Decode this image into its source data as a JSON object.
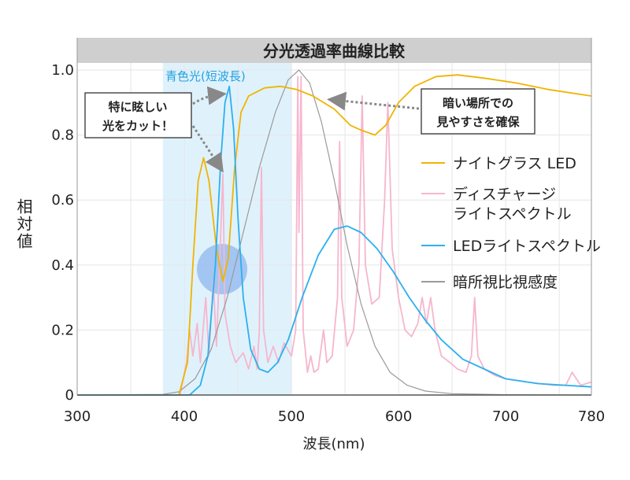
{
  "chart_data": {
    "type": "line",
    "title": "分光透過率曲線比較",
    "xlabel": "波長(nm)",
    "ylabel": "相対値",
    "xlim": [
      300,
      780
    ],
    "ylim": [
      0,
      1.0
    ],
    "x_ticks": [
      "300",
      "400",
      "500",
      "600",
      "700",
      "780"
    ],
    "y_ticks": [
      "0",
      "0.2",
      "0.4",
      "0.6",
      "0.8",
      "1.0"
    ],
    "grid": true,
    "legend_position": "right",
    "highlight_band": {
      "label": "青色光(短波長)",
      "range": [
        380,
        500
      ],
      "color": "#dff2fc"
    },
    "annotations": [
      {
        "lines": [
          "特に眩しい",
          "光をカット！"
        ]
      },
      {
        "lines": [
          "暗い場所での",
          "見やすさを確保"
        ]
      }
    ],
    "series": [
      {
        "name": "ナイトグラス LED",
        "color": "#f0b400",
        "points": [
          [
            300,
            0
          ],
          [
            395,
            0
          ],
          [
            403,
            0.1
          ],
          [
            408,
            0.4
          ],
          [
            413,
            0.66
          ],
          [
            418,
            0.73
          ],
          [
            423,
            0.66
          ],
          [
            430,
            0.45
          ],
          [
            436,
            0.35
          ],
          [
            441,
            0.42
          ],
          [
            447,
            0.7
          ],
          [
            453,
            0.87
          ],
          [
            460,
            0.92
          ],
          [
            475,
            0.945
          ],
          [
            490,
            0.95
          ],
          [
            505,
            0.94
          ],
          [
            520,
            0.92
          ],
          [
            540,
            0.88
          ],
          [
            555,
            0.83
          ],
          [
            565,
            0.815
          ],
          [
            578,
            0.8
          ],
          [
            588,
            0.83
          ],
          [
            600,
            0.9
          ],
          [
            615,
            0.95
          ],
          [
            635,
            0.98
          ],
          [
            655,
            0.985
          ],
          [
            680,
            0.975
          ],
          [
            710,
            0.96
          ],
          [
            740,
            0.94
          ],
          [
            780,
            0.92
          ]
        ]
      },
      {
        "name": "ディスチャージライトスペクトル",
        "color": "#f6b6cd",
        "points": [
          [
            396,
            0
          ],
          [
            402,
            0.1
          ],
          [
            405,
            0.2
          ],
          [
            408,
            0.12
          ],
          [
            412,
            0.22
          ],
          [
            415,
            0.1
          ],
          [
            420,
            0.3
          ],
          [
            423,
            0.12
          ],
          [
            427,
            0.35
          ],
          [
            430,
            0.15
          ],
          [
            434,
            0.5
          ],
          [
            436,
            0.68
          ],
          [
            438,
            0.25
          ],
          [
            443,
            0.15
          ],
          [
            448,
            0.1
          ],
          [
            455,
            0.13
          ],
          [
            460,
            0.08
          ],
          [
            465,
            0.15
          ],
          [
            468,
            0.08
          ],
          [
            470,
            0.2
          ],
          [
            472,
            0.7
          ],
          [
            474,
            0.2
          ],
          [
            478,
            0.1
          ],
          [
            483,
            0.15
          ],
          [
            488,
            0.1
          ],
          [
            493,
            0.16
          ],
          [
            500,
            0.12
          ],
          [
            504,
            0.2
          ],
          [
            506,
            0.98
          ],
          [
            507,
            0.5
          ],
          [
            509,
            0.98
          ],
          [
            511,
            0.2
          ],
          [
            515,
            0.07
          ],
          [
            518,
            0.12
          ],
          [
            521,
            0.07
          ],
          [
            525,
            0.08
          ],
          [
            530,
            0.2
          ],
          [
            533,
            0.1
          ],
          [
            538,
            0.12
          ],
          [
            543,
            0.3
          ],
          [
            545,
            0.78
          ],
          [
            547,
            0.3
          ],
          [
            552,
            0.15
          ],
          [
            558,
            0.2
          ],
          [
            563,
            0.4
          ],
          [
            566,
            0.92
          ],
          [
            569,
            0.4
          ],
          [
            575,
            0.28
          ],
          [
            582,
            0.3
          ],
          [
            587,
            0.6
          ],
          [
            590,
            0.9
          ],
          [
            594,
            0.45
          ],
          [
            600,
            0.3
          ],
          [
            606,
            0.2
          ],
          [
            612,
            0.18
          ],
          [
            618,
            0.22
          ],
          [
            622,
            0.3
          ],
          [
            626,
            0.22
          ],
          [
            630,
            0.3
          ],
          [
            634,
            0.2
          ],
          [
            640,
            0.12
          ],
          [
            648,
            0.1
          ],
          [
            655,
            0.08
          ],
          [
            663,
            0.07
          ],
          [
            668,
            0.12
          ],
          [
            671,
            0.3
          ],
          [
            674,
            0.12
          ],
          [
            680,
            0.08
          ],
          [
            690,
            0.06
          ],
          [
            700,
            0.05
          ],
          [
            720,
            0.04
          ],
          [
            745,
            0.03
          ],
          [
            756,
            0.03
          ],
          [
            762,
            0.07
          ],
          [
            770,
            0.03
          ],
          [
            780,
            0.04
          ]
        ]
      },
      {
        "name": "LEDライトスペクトル",
        "color": "#2bb0ef",
        "points": [
          [
            300,
            0
          ],
          [
            405,
            0
          ],
          [
            415,
            0.03
          ],
          [
            422,
            0.12
          ],
          [
            429,
            0.4
          ],
          [
            434,
            0.72
          ],
          [
            438,
            0.9
          ],
          [
            442,
            0.95
          ],
          [
            446,
            0.82
          ],
          [
            450,
            0.55
          ],
          [
            455,
            0.3
          ],
          [
            462,
            0.14
          ],
          [
            470,
            0.08
          ],
          [
            478,
            0.07
          ],
          [
            487,
            0.1
          ],
          [
            497,
            0.17
          ],
          [
            510,
            0.3
          ],
          [
            525,
            0.43
          ],
          [
            540,
            0.51
          ],
          [
            552,
            0.52
          ],
          [
            565,
            0.5
          ],
          [
            580,
            0.45
          ],
          [
            595,
            0.38
          ],
          [
            610,
            0.3
          ],
          [
            625,
            0.23
          ],
          [
            640,
            0.17
          ],
          [
            660,
            0.11
          ],
          [
            680,
            0.08
          ],
          [
            700,
            0.05
          ],
          [
            730,
            0.035
          ],
          [
            780,
            0.025
          ]
        ]
      },
      {
        "name": "暗所視比視感度",
        "color": "#9a9a9a",
        "points": [
          [
            300,
            0
          ],
          [
            380,
            0.002
          ],
          [
            395,
            0.01
          ],
          [
            410,
            0.05
          ],
          [
            425,
            0.14
          ],
          [
            440,
            0.3
          ],
          [
            455,
            0.5
          ],
          [
            470,
            0.7
          ],
          [
            485,
            0.87
          ],
          [
            497,
            0.97
          ],
          [
            507,
            1.0
          ],
          [
            517,
            0.96
          ],
          [
            528,
            0.84
          ],
          [
            540,
            0.66
          ],
          [
            552,
            0.46
          ],
          [
            565,
            0.28
          ],
          [
            578,
            0.15
          ],
          [
            592,
            0.07
          ],
          [
            608,
            0.03
          ],
          [
            625,
            0.012
          ],
          [
            650,
            0.004
          ],
          [
            700,
            0.001
          ],
          [
            780,
            0
          ]
        ]
      }
    ]
  }
}
